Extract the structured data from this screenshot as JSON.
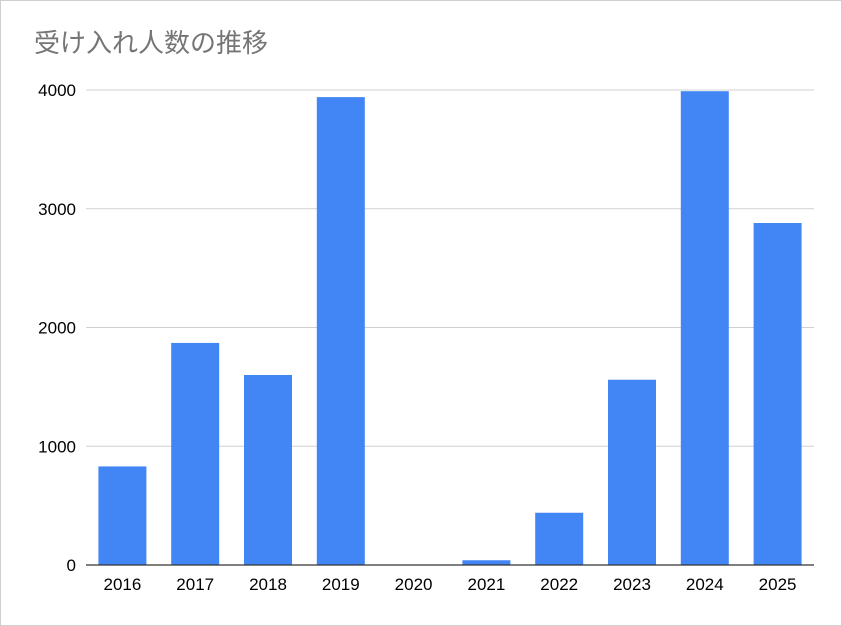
{
  "chart_data": {
    "type": "bar",
    "title": "受け入れ人数の推移",
    "xlabel": "",
    "ylabel": "",
    "categories": [
      "2016",
      "2017",
      "2018",
      "2019",
      "2020",
      "2021",
      "2022",
      "2023",
      "2024",
      "2025"
    ],
    "values": [
      830,
      1870,
      1600,
      3940,
      0,
      40,
      440,
      1560,
      3990,
      2880
    ],
    "ylim": [
      0,
      4000
    ],
    "yticks": [
      "0",
      "1000",
      "2000",
      "3000",
      "4000"
    ],
    "grid": true,
    "legend": "none",
    "colors": {
      "bar": "#4285f4",
      "grid": "#d0d0d0",
      "axis": "#333333",
      "title": "#757575"
    }
  }
}
